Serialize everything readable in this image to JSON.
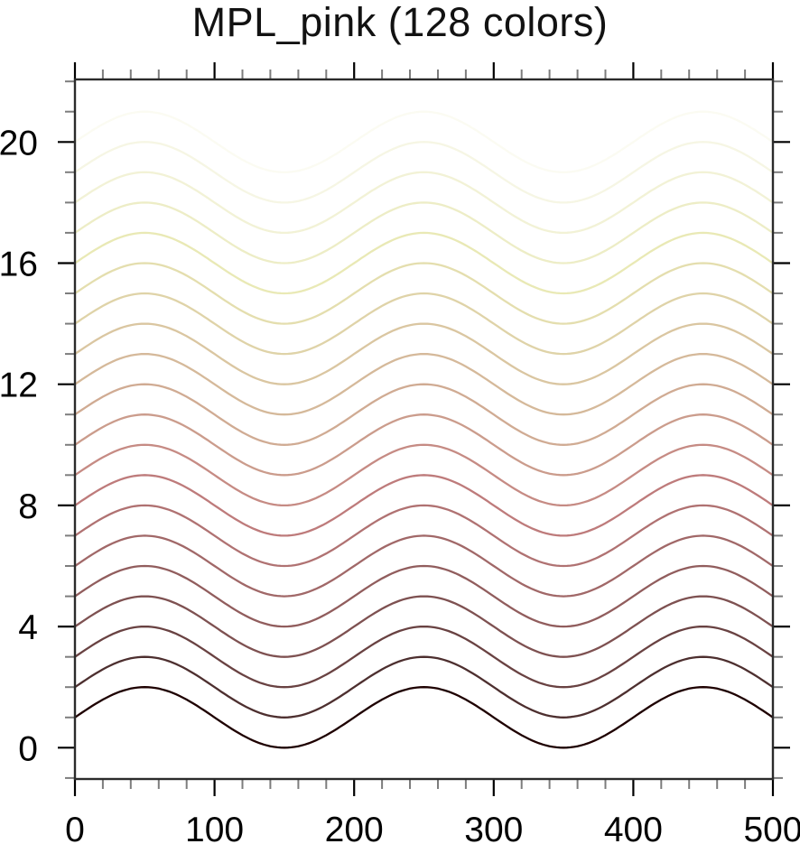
{
  "title": "MPL_pink (128 colors)",
  "chart_data": {
    "type": "line",
    "title": "MPL_pink (128 colors)",
    "colormap_name": "MPL_pink",
    "n_colors": 128,
    "background_color": "#ffffff",
    "axis_color": "#2b2b2b",
    "major_tick_color": "#000000",
    "minor_tick_color": "#7d7d7d",
    "label_color": "#000000",
    "grid": false,
    "legend": false,
    "x_axis": {
      "range": [
        0,
        500
      ],
      "major_ticks": [
        0,
        100,
        200,
        300,
        400,
        500
      ],
      "tick_labels": [
        "0",
        "100",
        "200",
        "300",
        "400",
        "500"
      ],
      "minor_tick_step": 20
    },
    "y_axis": {
      "range": [
        -1.034,
        22.065
      ],
      "major_ticks": [
        0,
        4,
        8,
        12,
        16,
        20
      ],
      "tick_labels": [
        "0",
        "4",
        "8",
        "12",
        "16",
        "20"
      ],
      "minor_tick_step": 1,
      "minor_tick_range": [
        -1,
        22
      ]
    },
    "curves": {
      "count": 21,
      "formula": "y = offset + amplitude * sin(2*PI*x/period)",
      "period": 200,
      "amplitude": 1,
      "offsets": [
        1,
        2,
        3,
        4,
        5,
        6,
        7,
        8,
        9,
        10,
        11,
        12,
        13,
        14,
        15,
        16,
        17,
        18,
        19,
        20,
        21
      ],
      "colors": [
        "#1e0000",
        "#4d2f2f",
        "#694242",
        "#7e5151",
        "#915d5d",
        "#a16868",
        "#b07272",
        "#be7b7b",
        "#c68b84",
        "#cb9c8c",
        "#d0ab93",
        "#d5b99a",
        "#dac6a1",
        "#dfd3a8",
        "#e4deae",
        "#e9e9b5",
        "#ededc6",
        "#f2f2d6",
        "#f6f6e4",
        "#fbfbf2",
        "#ffffff"
      ]
    }
  }
}
